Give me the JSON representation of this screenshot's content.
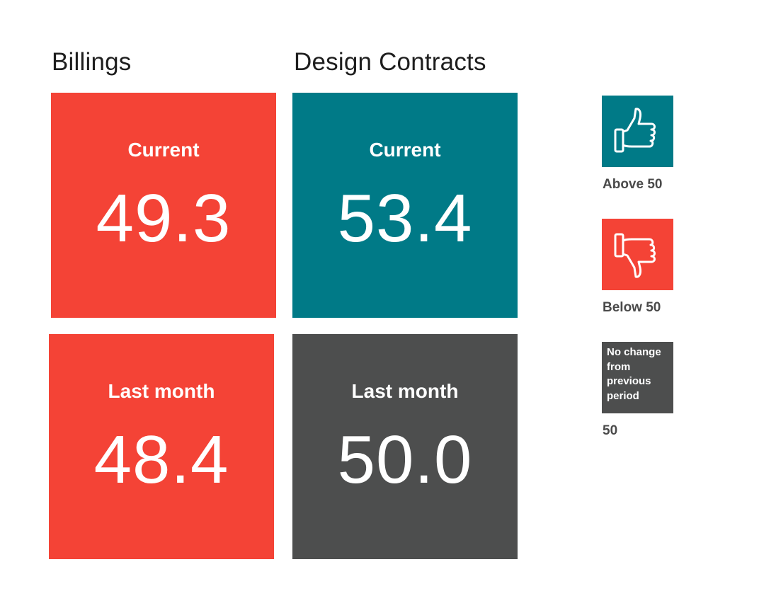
{
  "columns": {
    "billings": {
      "title": "Billings",
      "current": {
        "label": "Current",
        "value": "49.3"
      },
      "last_month": {
        "label": "Last month",
        "value": "48.4"
      }
    },
    "design_contracts": {
      "title": "Design Contracts",
      "current": {
        "label": "Current",
        "value": "53.4"
      },
      "last_month": {
        "label": "Last month",
        "value": "50.0"
      }
    }
  },
  "legend": {
    "above": {
      "icon": "thumbs-up-icon",
      "caption": "Above 50"
    },
    "below": {
      "icon": "thumbs-down-icon",
      "caption": "Below 50"
    },
    "no_change": {
      "box_text": "No change from previous period",
      "caption": "50"
    }
  },
  "colors": {
    "below": "#f44336",
    "above": "#007a87",
    "no_change": "#4d4e4e",
    "text_dark": "#1e1e1e",
    "caption": "#4a4a4a"
  }
}
